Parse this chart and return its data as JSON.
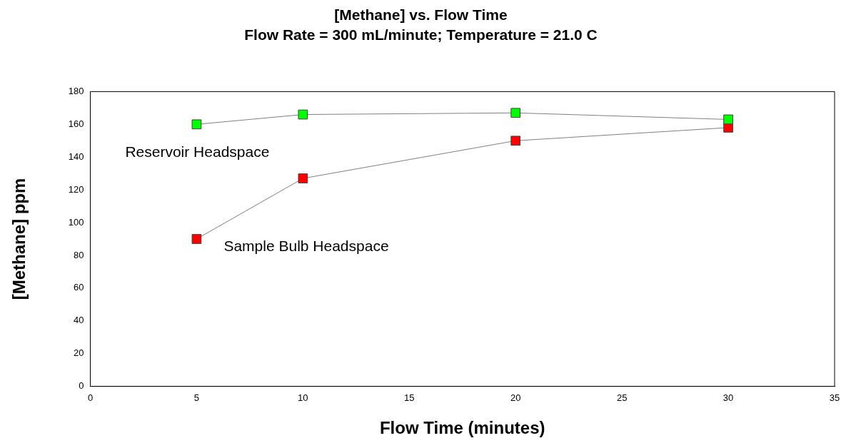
{
  "chart_data": {
    "type": "line",
    "title": "[Methane] vs. Flow Time",
    "subtitle": "Flow Rate = 300 mL/minute; Temperature = 21.0 C",
    "xlabel": "Flow Time (minutes)",
    "ylabel": "[Methane] ppm",
    "series": [
      {
        "name": "Reservoir Headspace",
        "color": "#00ff00",
        "x": [
          5,
          10,
          20,
          30
        ],
        "values": [
          160,
          166,
          167,
          163
        ]
      },
      {
        "name": "Sample Bulb Headspace",
        "color": "#ff0000",
        "x": [
          5,
          10,
          20,
          30
        ],
        "values": [
          90,
          127,
          150,
          158
        ]
      }
    ],
    "xlim": [
      0,
      35
    ],
    "xticks": [
      0,
      5,
      10,
      15,
      20,
      25,
      30,
      35
    ],
    "ylim": [
      0,
      180
    ],
    "yticks": [
      0,
      20,
      40,
      60,
      80,
      100,
      120,
      140,
      160,
      180
    ],
    "grid": false,
    "legend": false,
    "marker": "square",
    "line_style": "solid"
  }
}
